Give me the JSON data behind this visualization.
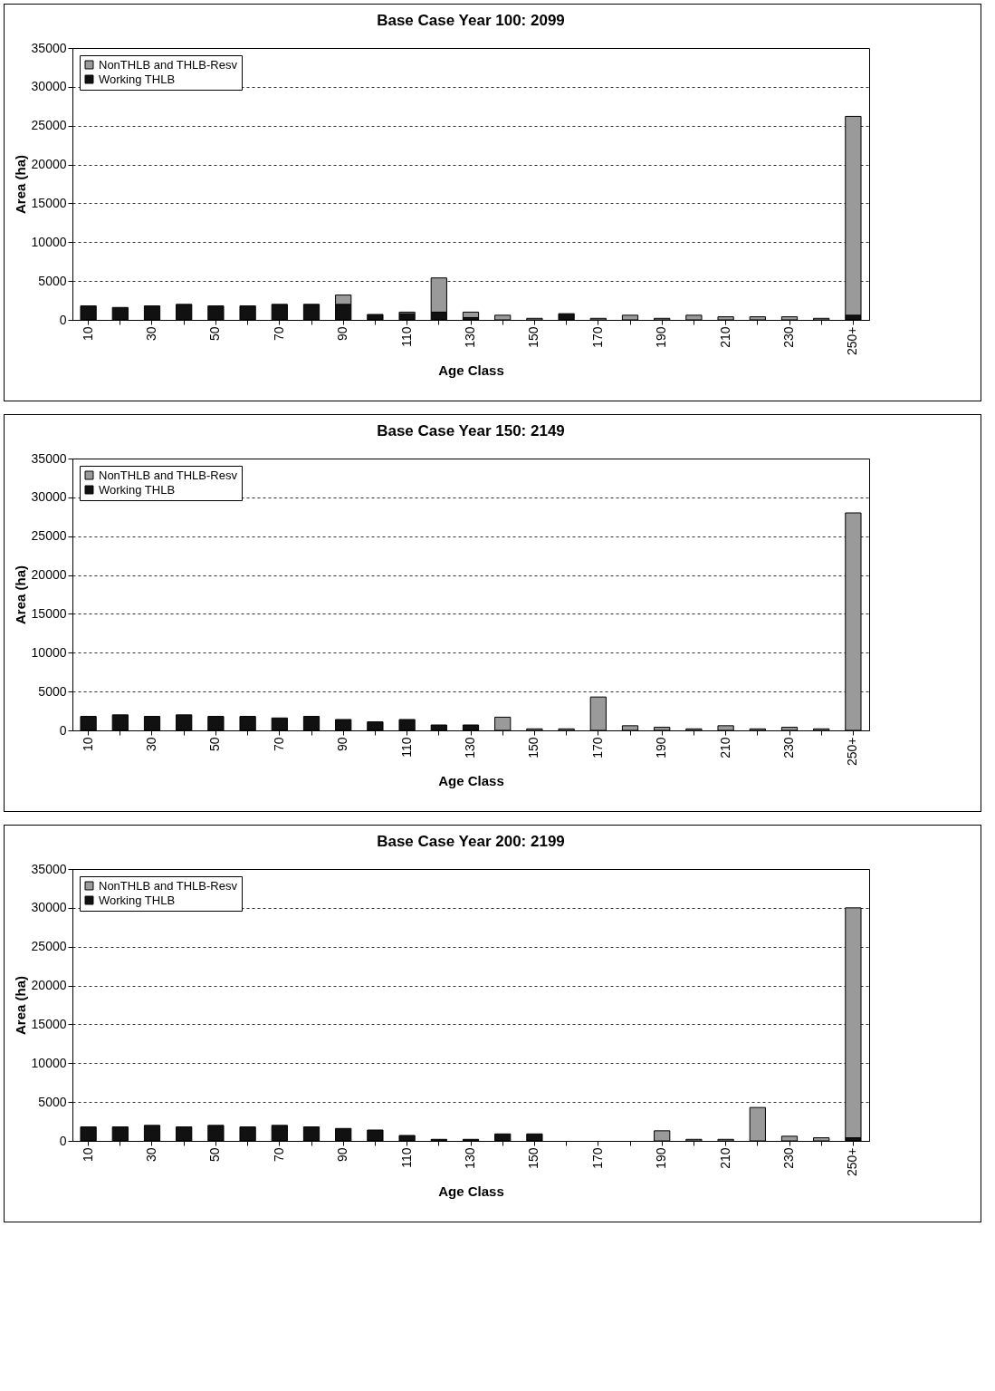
{
  "chart_data": [
    {
      "type": "bar",
      "title": "Base Case Year 100:  2099",
      "xlabel": "Age Class",
      "ylabel": "Area (ha)",
      "stacked": true,
      "legend": "top left",
      "grid": "y",
      "ylim": [
        0,
        35000
      ],
      "yticks": [
        0,
        5000,
        10000,
        15000,
        20000,
        25000,
        30000,
        35000
      ],
      "categories": [
        "10",
        null,
        "30",
        null,
        "50",
        null,
        "70",
        null,
        "90",
        null,
        "110",
        null,
        "130",
        null,
        "150",
        null,
        "170",
        null,
        "190",
        null,
        "210",
        null,
        "230",
        null,
        "250+"
      ],
      "series": [
        {
          "name": "Working THLB",
          "color": "#111111",
          "values": [
            1800,
            1600,
            1800,
            2000,
            1800,
            1800,
            2000,
            2000,
            2000,
            700,
            800,
            1000,
            300,
            null,
            null,
            800,
            null,
            null,
            null,
            null,
            null,
            null,
            null,
            null,
            600
          ]
        },
        {
          "name": "NonTHLB and THLB-Resv",
          "color": "#9a9a9a",
          "values": [
            null,
            null,
            null,
            null,
            null,
            null,
            null,
            null,
            1200,
            null,
            200,
            4400,
            700,
            600,
            200,
            null,
            200,
            600,
            200,
            600,
            400,
            400,
            400,
            200,
            25600
          ]
        }
      ]
    },
    {
      "type": "bar",
      "title": "Base Case Year 150:  2149",
      "xlabel": "Age Class",
      "ylabel": "Area (ha)",
      "stacked": true,
      "legend": "top left",
      "grid": "y",
      "ylim": [
        0,
        35000
      ],
      "yticks": [
        0,
        5000,
        10000,
        15000,
        20000,
        25000,
        30000,
        35000
      ],
      "categories": [
        "10",
        null,
        "30",
        null,
        "50",
        null,
        "70",
        null,
        "90",
        null,
        "110",
        null,
        "130",
        null,
        "150",
        null,
        "170",
        null,
        "190",
        null,
        "210",
        null,
        "230",
        null,
        "250+"
      ],
      "series": [
        {
          "name": "Working THLB",
          "color": "#111111",
          "values": [
            1800,
            2000,
            1800,
            2000,
            1800,
            1800,
            1600,
            1800,
            1400,
            1100,
            1400,
            700,
            700,
            null,
            null,
            null,
            null,
            null,
            null,
            null,
            null,
            null,
            null,
            null,
            null
          ]
        },
        {
          "name": "NonTHLB and THLB-Resv",
          "color": "#9a9a9a",
          "values": [
            null,
            null,
            null,
            null,
            null,
            null,
            null,
            null,
            null,
            null,
            null,
            null,
            null,
            1700,
            200,
            200,
            4300,
            600,
            400,
            200,
            600,
            200,
            400,
            200,
            28000
          ]
        }
      ]
    },
    {
      "type": "bar",
      "title": "Base Case Year 200:  2199",
      "xlabel": "Age Class",
      "ylabel": "Area (ha)",
      "stacked": true,
      "legend": "top left",
      "grid": "y",
      "ylim": [
        0,
        35000
      ],
      "yticks": [
        0,
        5000,
        10000,
        15000,
        20000,
        25000,
        30000,
        35000
      ],
      "categories": [
        "10",
        null,
        "30",
        null,
        "50",
        null,
        "70",
        null,
        "90",
        null,
        "110",
        null,
        "130",
        null,
        "150",
        null,
        "170",
        null,
        "190",
        null,
        "210",
        null,
        "230",
        null,
        "250+"
      ],
      "series": [
        {
          "name": "Working THLB",
          "color": "#111111",
          "values": [
            1800,
            1800,
            2000,
            1800,
            2000,
            1800,
            2000,
            1800,
            1600,
            1400,
            700,
            200,
            200,
            900,
            900,
            null,
            null,
            null,
            null,
            null,
            null,
            null,
            null,
            null,
            400
          ]
        },
        {
          "name": "NonTHLB and THLB-Resv",
          "color": "#9a9a9a",
          "values": [
            null,
            null,
            null,
            null,
            null,
            null,
            null,
            null,
            null,
            null,
            null,
            null,
            null,
            null,
            null,
            null,
            null,
            null,
            1300,
            200,
            200,
            4300,
            600,
            400,
            29600
          ]
        }
      ]
    }
  ]
}
